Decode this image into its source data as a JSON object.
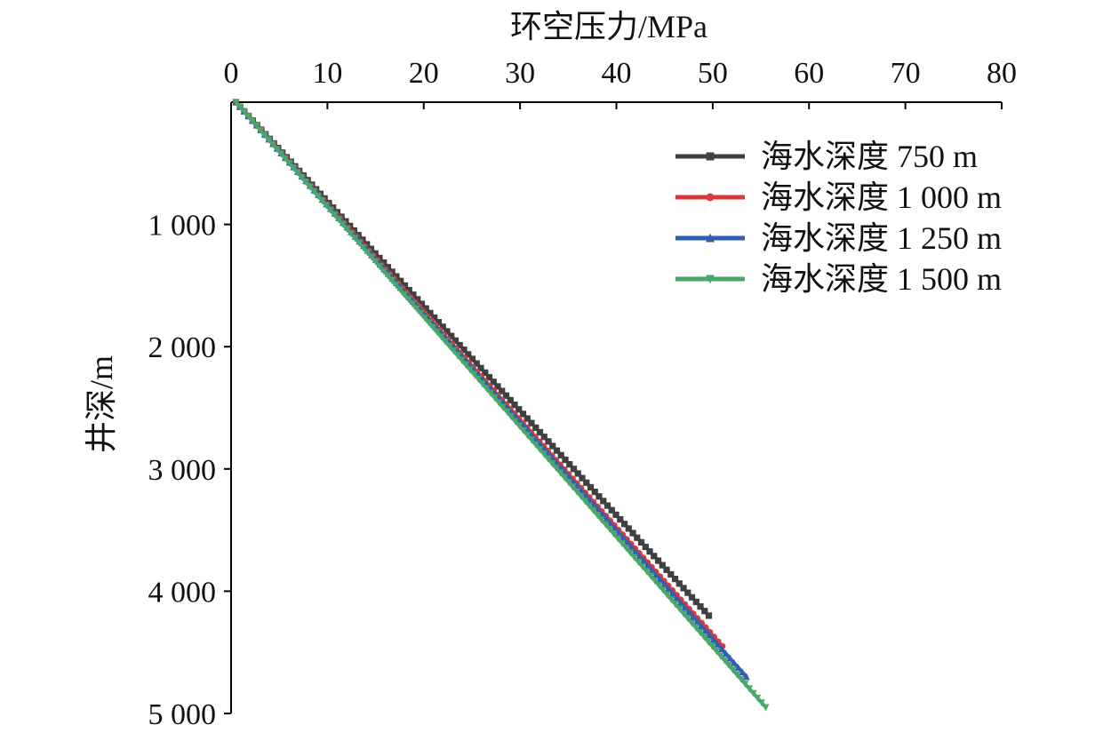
{
  "chart_data": {
    "type": "line",
    "xlabel": "环空压力/MPa",
    "ylabel": "井深/m",
    "xlim": [
      0,
      80
    ],
    "ylim": [
      0,
      5000
    ],
    "x_axis_position": "top",
    "y_axis_inverted": true,
    "x_ticks": [
      "0",
      "10",
      "20",
      "30",
      "40",
      "50",
      "60",
      "70",
      "80"
    ],
    "y_ticks": [
      "1 000",
      "2 000",
      "3 000",
      "4 000",
      "5 000"
    ],
    "grid": false,
    "legend_position": "top-right",
    "series": [
      {
        "name": "海水深度 750 m",
        "color": "#404040",
        "marker": "square",
        "points": [
          [
            0.5,
            0
          ],
          [
            49.6,
            4200
          ]
        ]
      },
      {
        "name": "海水深度 1 000 m",
        "color": "#d9393c",
        "marker": "circle",
        "points": [
          [
            0.5,
            0
          ],
          [
            51.0,
            4450
          ]
        ]
      },
      {
        "name": "海水深度 1 250 m",
        "color": "#2e5fb0",
        "marker": "triangle-up",
        "points": [
          [
            0.5,
            0
          ],
          [
            53.5,
            4700
          ]
        ]
      },
      {
        "name": "海水深度 1 500 m",
        "color": "#4aa66a",
        "marker": "triangle-down",
        "points": [
          [
            0.5,
            0
          ],
          [
            55.5,
            4950
          ]
        ]
      }
    ]
  }
}
